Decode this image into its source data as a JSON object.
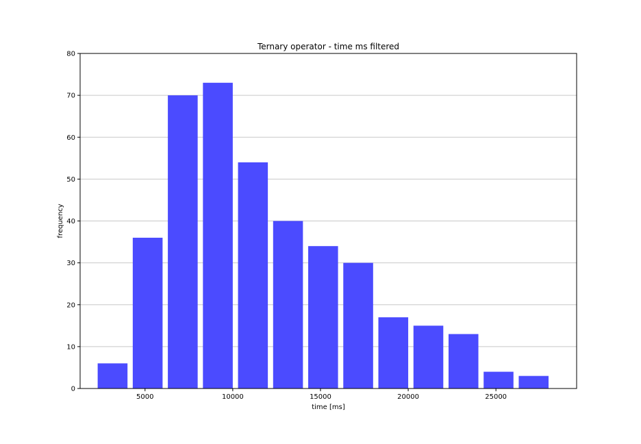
{
  "chart_data": {
    "type": "bar",
    "title": "Ternary operator - time ms filtered",
    "xlabel": "time [ms]",
    "ylabel": "frequency",
    "x_centers": [
      3150,
      5150,
      7150,
      9150,
      11150,
      13150,
      15150,
      17150,
      19150,
      21150,
      23150,
      25150,
      27150
    ],
    "bar_width": 1700,
    "values": [
      6,
      36,
      70,
      73,
      54,
      40,
      34,
      30,
      17,
      15,
      13,
      4,
      3
    ],
    "xlim": [
      1300,
      29600
    ],
    "ylim": [
      0,
      80
    ],
    "xticks": [
      5000,
      10000,
      15000,
      20000,
      25000
    ],
    "xtick_labels": [
      "5000",
      "10000",
      "15000",
      "20000",
      "25000"
    ],
    "yticks": [
      0,
      10,
      20,
      30,
      40,
      50,
      60,
      70,
      80
    ],
    "ytick_labels": [
      "0",
      "10",
      "20",
      "30",
      "40",
      "50",
      "60",
      "70",
      "80"
    ],
    "grid": "y",
    "bar_color": "#4b4bff"
  }
}
